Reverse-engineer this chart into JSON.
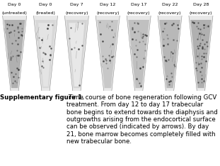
{
  "caption_bold": "Supplementary figure 1.",
  "caption_normal": " Time course of bone regeneration following GCV treatment. From day 12 to day 17 trabecular bone begins to extend towards the diaphysis and outgrowths arising from the endocortical surface can be observed (indicated by arrows). By day 21, bone marrow becomes completely filled with new trabecular bone.",
  "panel_labels": [
    [
      "Day 0",
      "(untreated)"
    ],
    [
      "Day 0",
      "(treated)"
    ],
    [
      "Day 7",
      "(recovery)"
    ],
    [
      "Day 12",
      "(recovery)"
    ],
    [
      "Day 17",
      "(recovery)"
    ],
    [
      "Day 22",
      "(recovery)"
    ],
    [
      "Day 28",
      "(recovery)"
    ]
  ],
  "num_panels": 7,
  "background_color": "#ffffff",
  "panel_dark_bg": "#606060",
  "bone_light": "#e8e8e8",
  "bone_cortical": "#d0d0d0",
  "bone_trabecular_dark": "#a0a0a0",
  "label_fontsize": 4.5,
  "caption_fontsize": 6.2,
  "caption_bold_size": 6.2
}
